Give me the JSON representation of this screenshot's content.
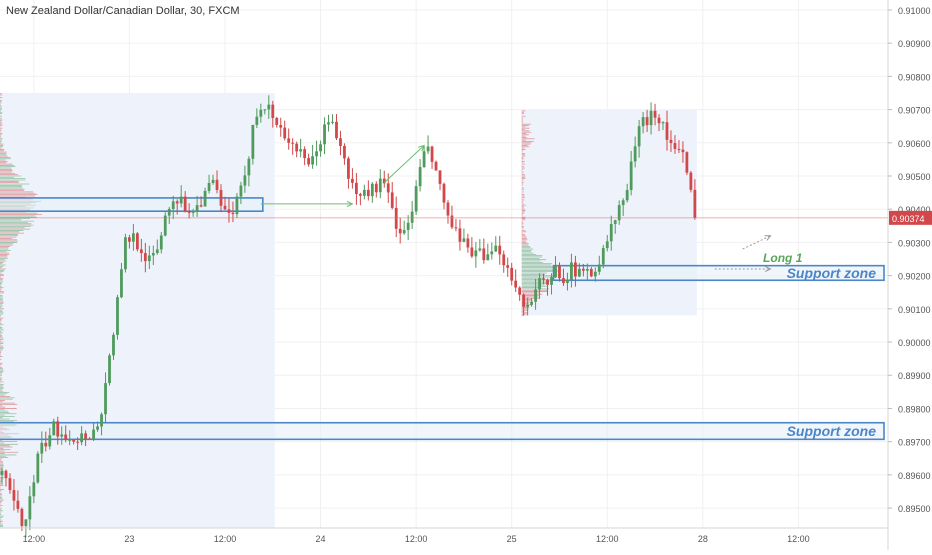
{
  "header": {
    "title": "New Zealand Dollar/Canadian Dollar, 30, FXCM"
  },
  "colors": {
    "up": "#4f9a5c",
    "down": "#d2484a",
    "zone": "#4a86c8",
    "zone_fill": "#e6eef8",
    "profile_bg": "#eef3fb",
    "grid": "#f0f0f0",
    "price_line": "#e46b6b",
    "arrow": "#6cbf6c",
    "axis_text": "#555555"
  },
  "chart_data": {
    "type": "candlestick",
    "title": "New Zealand Dollar/Canadian Dollar, 30, FXCM",
    "ylim": [
      0.8944,
      0.9103
    ],
    "y_ticks": [
      "0.90900",
      "0.90800",
      "0.90700",
      "0.90600",
      "0.90500",
      "0.90400",
      "0.90300",
      "0.90200",
      "0.90100",
      "0.90000",
      "0.89900",
      "0.89800",
      "0.89700",
      "0.89600",
      "0.89500"
    ],
    "y_tick_values": [
      0.909,
      0.908,
      0.907,
      0.906,
      0.905,
      0.904,
      0.903,
      0.902,
      0.901,
      0.9,
      0.899,
      0.898,
      0.897,
      0.896,
      0.895
    ],
    "y_top_label": "0.91000",
    "x_ticks": [
      "12:00",
      "23",
      "12:00",
      "24",
      "12:00",
      "25",
      "12:00",
      "28",
      "12:00"
    ],
    "x_tick_bars": [
      8,
      32,
      56,
      80,
      104,
      128,
      152,
      176,
      200
    ],
    "bars_total": 223,
    "last_price": {
      "value": 0.90374,
      "label": "0.90374"
    },
    "candle_path": [
      [
        0,
        0.896
      ],
      [
        3,
        0.8951
      ],
      [
        5,
        0.8945
      ],
      [
        7,
        0.8952
      ],
      [
        9,
        0.8965
      ],
      [
        11,
        0.897
      ],
      [
        13,
        0.8974
      ],
      [
        15,
        0.8973
      ],
      [
        17,
        0.8972
      ],
      [
        19,
        0.8971
      ],
      [
        21,
        0.8972
      ],
      [
        24,
        0.8974
      ],
      [
        25,
        0.898
      ],
      [
        27,
        0.8995
      ],
      [
        29,
        0.9012
      ],
      [
        31,
        0.903
      ],
      [
        33,
        0.9032
      ],
      [
        35,
        0.9028
      ],
      [
        37,
        0.9024
      ],
      [
        39,
        0.9028
      ],
      [
        41,
        0.9038
      ],
      [
        43,
        0.9044
      ],
      [
        45,
        0.9042
      ],
      [
        47,
        0.904
      ],
      [
        49,
        0.9041
      ],
      [
        51,
        0.9045
      ],
      [
        53,
        0.9048
      ],
      [
        55,
        0.904
      ],
      [
        57,
        0.9038
      ],
      [
        59,
        0.9042
      ],
      [
        61,
        0.9048
      ],
      [
        63,
        0.9066
      ],
      [
        65,
        0.9072
      ],
      [
        67,
        0.907
      ],
      [
        69,
        0.9066
      ],
      [
        71,
        0.9062
      ],
      [
        73,
        0.906
      ],
      [
        75,
        0.9056
      ],
      [
        77,
        0.9052
      ],
      [
        79,
        0.9058
      ],
      [
        81,
        0.9064
      ],
      [
        83,
        0.9067
      ],
      [
        85,
        0.9058
      ],
      [
        87,
        0.905
      ],
      [
        89,
        0.9044
      ],
      [
        91,
        0.9045
      ],
      [
        93,
        0.9046
      ],
      [
        95,
        0.9048
      ],
      [
        97,
        0.9044
      ],
      [
        99,
        0.9036
      ],
      [
        101,
        0.9032
      ],
      [
        103,
        0.904
      ],
      [
        105,
        0.9052
      ],
      [
        107,
        0.9059
      ],
      [
        109,
        0.905
      ],
      [
        111,
        0.9042
      ],
      [
        113,
        0.9034
      ],
      [
        115,
        0.903
      ],
      [
        117,
        0.9028
      ],
      [
        119,
        0.9028
      ],
      [
        121,
        0.9024
      ],
      [
        123,
        0.9026
      ],
      [
        125,
        0.9028
      ],
      [
        127,
        0.9022
      ],
      [
        129,
        0.9018
      ],
      [
        131,
        0.901
      ],
      [
        133,
        0.9014
      ],
      [
        135,
        0.9018
      ],
      [
        137,
        0.9016
      ],
      [
        139,
        0.9022
      ],
      [
        141,
        0.902
      ],
      [
        143,
        0.9022
      ],
      [
        145,
        0.902
      ],
      [
        147,
        0.9022
      ],
      [
        149,
        0.9022
      ],
      [
        151,
        0.9027
      ],
      [
        153,
        0.9034
      ],
      [
        155,
        0.904
      ],
      [
        157,
        0.9046
      ],
      [
        159,
        0.906
      ],
      [
        161,
        0.9066
      ],
      [
        163,
        0.9069
      ],
      [
        165,
        0.9068
      ],
      [
        167,
        0.9062
      ],
      [
        169,
        0.9058
      ],
      [
        171,
        0.9056
      ],
      [
        173,
        0.9044
      ],
      [
        174,
        0.90374
      ]
    ],
    "zones": [
      {
        "name": "zone-upper-left",
        "from_bar": -1,
        "to_bar": 65,
        "low": 0.90394,
        "high": 0.90434
      },
      {
        "name": "zone-right",
        "from_bar": 139,
        "to_bar": 221,
        "low": 0.90186,
        "high": 0.9023,
        "label": "Support zone"
      },
      {
        "name": "zone-bottom",
        "from_bar": -1,
        "to_bar": 221,
        "low": 0.89707,
        "high": 0.89757,
        "label": "Support zone"
      }
    ],
    "profiles": [
      {
        "name": "profile-left",
        "from_bar": 0,
        "to_bar": 68,
        "low": 0.8944,
        "high": 0.9075,
        "poc": 0.9041
      },
      {
        "name": "profile-right",
        "from_bar": 131,
        "to_bar": 174,
        "low": 0.9008,
        "high": 0.907,
        "poc": 0.902
      }
    ],
    "annotations": {
      "long_label": "Long 1",
      "arrows": [
        {
          "x1": 65,
          "y1": 0.90416,
          "x2": 88,
          "y2": 0.90416,
          "dashed": false
        },
        {
          "x1": 96,
          "y1": 0.9048,
          "x2": 106,
          "y2": 0.90592,
          "dashed": false
        },
        {
          "x1": 186,
          "y1": 0.9028,
          "x2": 193,
          "y2": 0.9032,
          "dashed": true
        },
        {
          "x1": 179,
          "y1": 0.9022,
          "x2": 193,
          "y2": 0.9022,
          "dashed": true
        }
      ]
    }
  }
}
